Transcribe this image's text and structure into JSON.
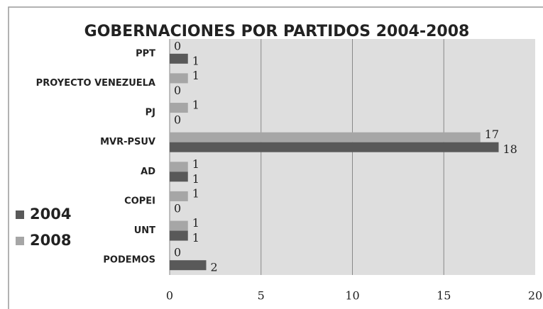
{
  "chart_data": {
    "type": "hbar",
    "title": "GOBERNACIONES POR PARTIDOS 2004-2008",
    "categories": [
      "PPT",
      "PROYECTO VENEZUELA",
      "PJ",
      "MVR-PSUV",
      "AD",
      "COPEI",
      "UNT",
      "PODEMOS"
    ],
    "series": [
      {
        "name": "2004",
        "color": "#595959",
        "values": [
          1,
          0,
          0,
          18,
          1,
          0,
          1,
          2
        ]
      },
      {
        "name": "2008",
        "color": "#a6a6a6",
        "values": [
          0,
          1,
          1,
          17,
          1,
          1,
          1,
          0
        ]
      }
    ],
    "xlim": [
      0,
      20
    ],
    "xticks": [
      0,
      5,
      10,
      15,
      20
    ],
    "grid": true,
    "legend": "left"
  }
}
